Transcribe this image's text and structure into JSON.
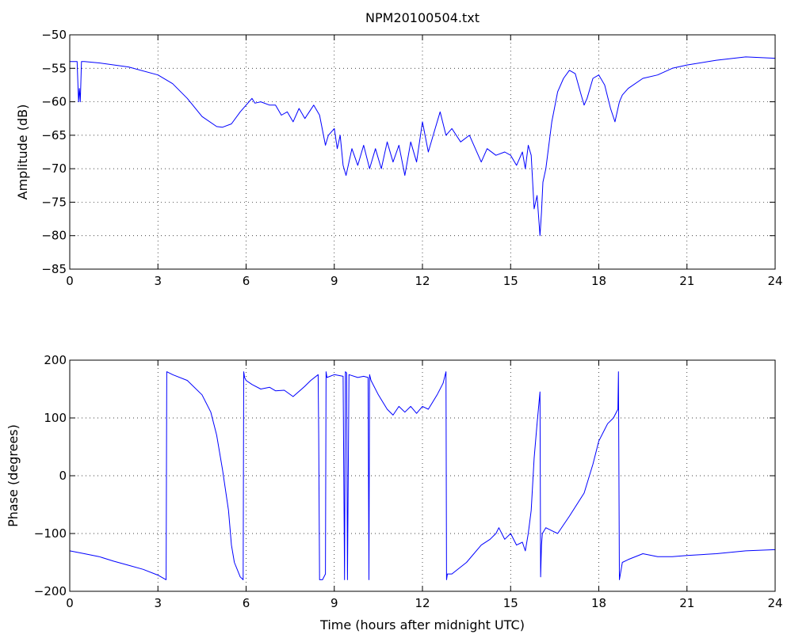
{
  "chart_data": [
    {
      "type": "line",
      "title": "NPM20100504.txt",
      "xlabel": "",
      "ylabel": "Amplitude (dB)",
      "xlim": [
        0,
        24
      ],
      "ylim": [
        -85,
        -50
      ],
      "xticks": [
        0,
        3,
        6,
        9,
        12,
        15,
        18,
        21,
        24
      ],
      "yticks": [
        -85,
        -80,
        -75,
        -70,
        -65,
        -60,
        -55,
        -50
      ],
      "grid": true,
      "line_color": "#0000ff",
      "series": [
        {
          "x": [
            0,
            0.25,
            0.3,
            0.33,
            0.36,
            0.4,
            0.43,
            0.5,
            1.0,
            2.0,
            3.0,
            3.5,
            4.0,
            4.5,
            5.0,
            5.2,
            5.5,
            5.8,
            6.0,
            6.2,
            6.3,
            6.5,
            6.8,
            7.0,
            7.2,
            7.4,
            7.6,
            7.8,
            8.0,
            8.3,
            8.5,
            8.7,
            8.8,
            9.0,
            9.1,
            9.2,
            9.3,
            9.4,
            9.6,
            9.8,
            10.0,
            10.2,
            10.4,
            10.6,
            10.8,
            11.0,
            11.2,
            11.4,
            11.6,
            11.8,
            12.0,
            12.2,
            12.4,
            12.6,
            12.8,
            13.0,
            13.3,
            13.6,
            14.0,
            14.2,
            14.5,
            14.8,
            15.0,
            15.2,
            15.4,
            15.5,
            15.6,
            15.7,
            15.8,
            15.9,
            16.0,
            16.05,
            16.1,
            16.2,
            16.4,
            16.6,
            16.8,
            17.0,
            17.2,
            17.4,
            17.5,
            17.6,
            17.8,
            18.0,
            18.2,
            18.4,
            18.55,
            18.7,
            18.8,
            19.0,
            19.5,
            20.0,
            20.5,
            21.0,
            22.0,
            23.0,
            24.0
          ],
          "y": [
            -54,
            -54,
            -60,
            -58,
            -60,
            -54,
            -54,
            -54,
            -54.2,
            -54.8,
            -56,
            -57.3,
            -59.5,
            -62.2,
            -63.7,
            -63.8,
            -63.3,
            -61.5,
            -60.5,
            -59.5,
            -60.2,
            -60,
            -60.5,
            -60.5,
            -62,
            -61.5,
            -63,
            -61,
            -62.5,
            -60.5,
            -62,
            -66.5,
            -65,
            -64,
            -67,
            -65,
            -69.5,
            -71,
            -67,
            -69.5,
            -66.5,
            -70,
            -67,
            -70,
            -66,
            -69,
            -66.5,
            -71,
            -66,
            -69,
            -63,
            -67.5,
            -64.5,
            -61.5,
            -65,
            -64,
            -66,
            -65,
            -69,
            -67,
            -68,
            -67.5,
            -68,
            -69.5,
            -67.5,
            -70,
            -66.5,
            -68,
            -76,
            -74,
            -80,
            -76.5,
            -72,
            -70,
            -63,
            -58.5,
            -56.5,
            -55.3,
            -55.8,
            -59,
            -60.5,
            -59.5,
            -56.5,
            -56,
            -57.5,
            -61,
            -63,
            -60,
            -59,
            -58,
            -56.5,
            -56,
            -55,
            -54.5,
            -53.8,
            -53.3,
            -53.5
          ]
        }
      ]
    },
    {
      "type": "line",
      "title": "",
      "xlabel": "Time (hours after midnight UTC)",
      "ylabel": "Phase (degrees)",
      "xlim": [
        0,
        24
      ],
      "ylim": [
        -200,
        200
      ],
      "xticks": [
        0,
        3,
        6,
        9,
        12,
        15,
        18,
        21,
        24
      ],
      "yticks": [
        -200,
        -100,
        0,
        100,
        200
      ],
      "grid": true,
      "line_color": "#0000ff",
      "series": [
        {
          "x": [
            0,
            0.5,
            1.0,
            1.5,
            2.0,
            2.5,
            3.0,
            3.28,
            3.3,
            3.5,
            4.0,
            4.5,
            4.8,
            5.0,
            5.2,
            5.4,
            5.5,
            5.6,
            5.8,
            5.9,
            5.92,
            5.95,
            6.0,
            6.2,
            6.5,
            6.8,
            7.0,
            7.3,
            7.6,
            8.0,
            8.2,
            8.45,
            8.47,
            8.5,
            8.6,
            8.7,
            8.72,
            8.75,
            9.0,
            9.3,
            9.35,
            9.38,
            9.42,
            9.45,
            9.5,
            9.8,
            10.0,
            10.15,
            10.18,
            10.2,
            10.25,
            10.5,
            10.8,
            11.0,
            11.2,
            11.4,
            11.6,
            11.8,
            12.0,
            12.2,
            12.5,
            12.7,
            12.8,
            12.82,
            12.85,
            13.0,
            13.5,
            14.0,
            14.3,
            14.5,
            14.6,
            14.8,
            15.0,
            15.2,
            15.4,
            15.5,
            15.6,
            15.7,
            15.8,
            15.9,
            16.0,
            16.02,
            16.05,
            16.08,
            16.2,
            16.4,
            16.6,
            17.0,
            17.5,
            17.8,
            18.0,
            18.3,
            18.5,
            18.65,
            18.67,
            18.7,
            18.8,
            19.0,
            19.5,
            20.0,
            20.5,
            21.0,
            22.0,
            23.0,
            24.0
          ],
          "y": [
            -130,
            -135,
            -140,
            -148,
            -155,
            -162,
            -172,
            -180,
            180,
            175,
            165,
            140,
            110,
            70,
            10,
            -60,
            -120,
            -150,
            -175,
            -180,
            180,
            170,
            165,
            158,
            150,
            153,
            147,
            148,
            137,
            155,
            165,
            175,
            70,
            -180,
            -180,
            -170,
            180,
            170,
            175,
            172,
            -180,
            180,
            178,
            -180,
            175,
            170,
            172,
            170,
            -180,
            175,
            165,
            140,
            115,
            105,
            120,
            110,
            120,
            108,
            120,
            115,
            140,
            160,
            180,
            -180,
            -170,
            -170,
            -150,
            -120,
            -110,
            -100,
            -90,
            -110,
            -100,
            -120,
            -115,
            -130,
            -100,
            -60,
            30,
            90,
            145,
            -175,
            -120,
            -100,
            -90,
            -95,
            -100,
            -70,
            -30,
            20,
            60,
            90,
            100,
            115,
            180,
            -180,
            -150,
            -145,
            -135,
            -140,
            -140,
            -138,
            -135,
            -130,
            -128
          ]
        }
      ]
    }
  ]
}
